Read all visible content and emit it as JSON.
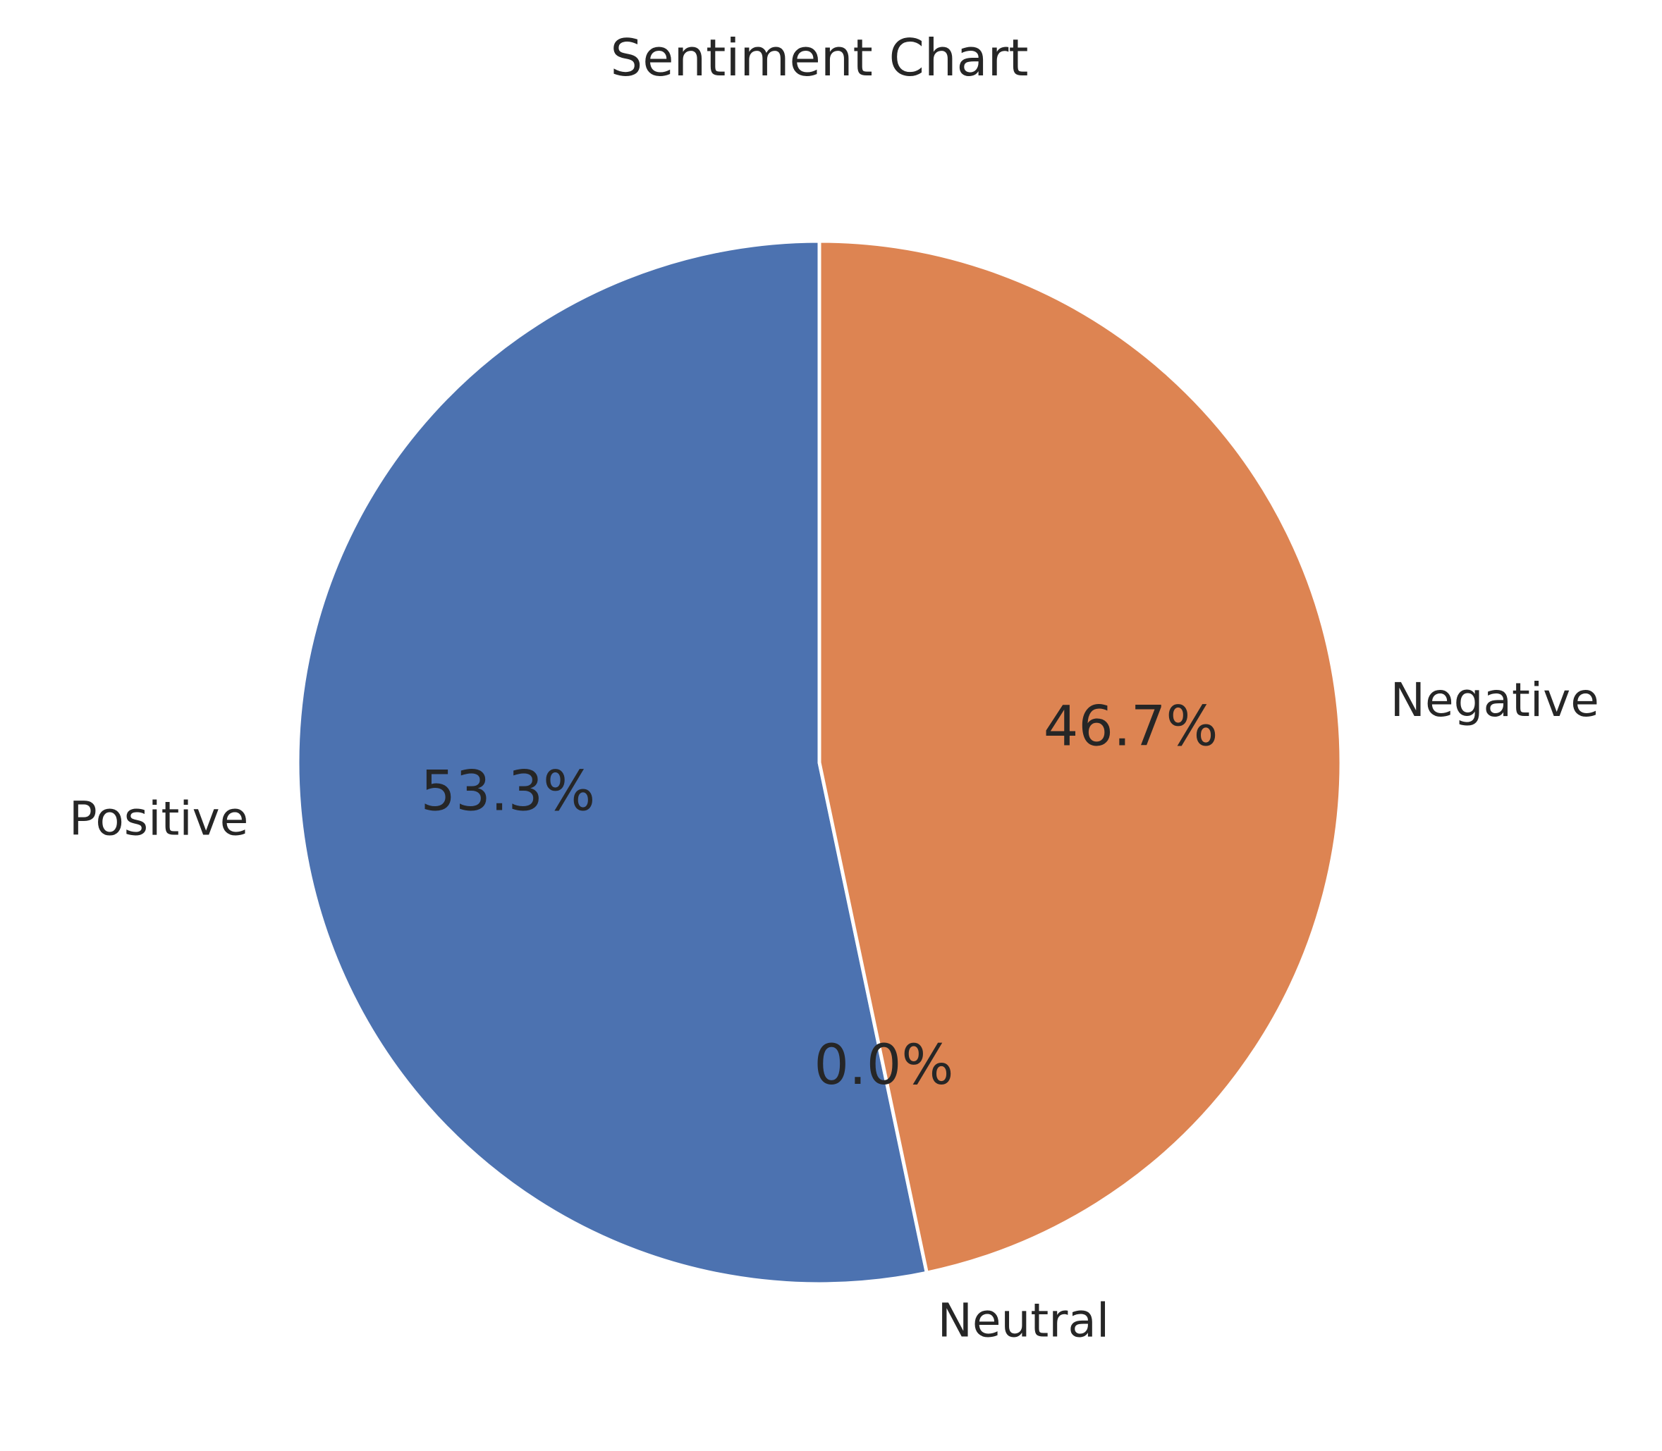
{
  "chart_data": {
    "type": "pie",
    "title": "Sentiment Chart",
    "start_angle_deg": 90,
    "direction": "counterclockwise",
    "slices": [
      {
        "label": "Positive",
        "value": 53.3,
        "pct_label": "53.3%",
        "color": "#4c72b0"
      },
      {
        "label": "Neutral",
        "value": 0.0,
        "pct_label": "0.0%",
        "color": "#55a868"
      },
      {
        "label": "Negative",
        "value": 46.7,
        "pct_label": "46.7%",
        "color": "#dd8452"
      }
    ],
    "edge_color": "#ffffff"
  }
}
